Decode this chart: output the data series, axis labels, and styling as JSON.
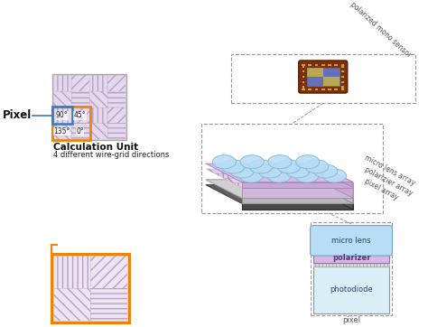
{
  "bg_color": "#ffffff",
  "orange_border": "#f0820a",
  "blue_border": "#3a7abf",
  "pixel_label": "Pixel",
  "calc_title": "Calculation Unit",
  "calc_subtitle": "4 different wire-grid directions",
  "angles": [
    "90°",
    "45°",
    "135°",
    "0°"
  ],
  "layer_labels": [
    "micro lens array",
    "polarizier array",
    "pixel array"
  ],
  "sensor_label": "polarized mono sensor",
  "pixel_cross_labels": [
    "micro lens",
    "polarizer",
    "photodiode",
    "pixel"
  ],
  "micro_lens_color": "#b8ddf5",
  "polarizer_color": "#d8b8e8",
  "photodiode_color": "#daeef8",
  "hatch_bg": "#e4d8ec",
  "hatch_color": "#b8a0c8",
  "grid_border": "#bbbbbb"
}
